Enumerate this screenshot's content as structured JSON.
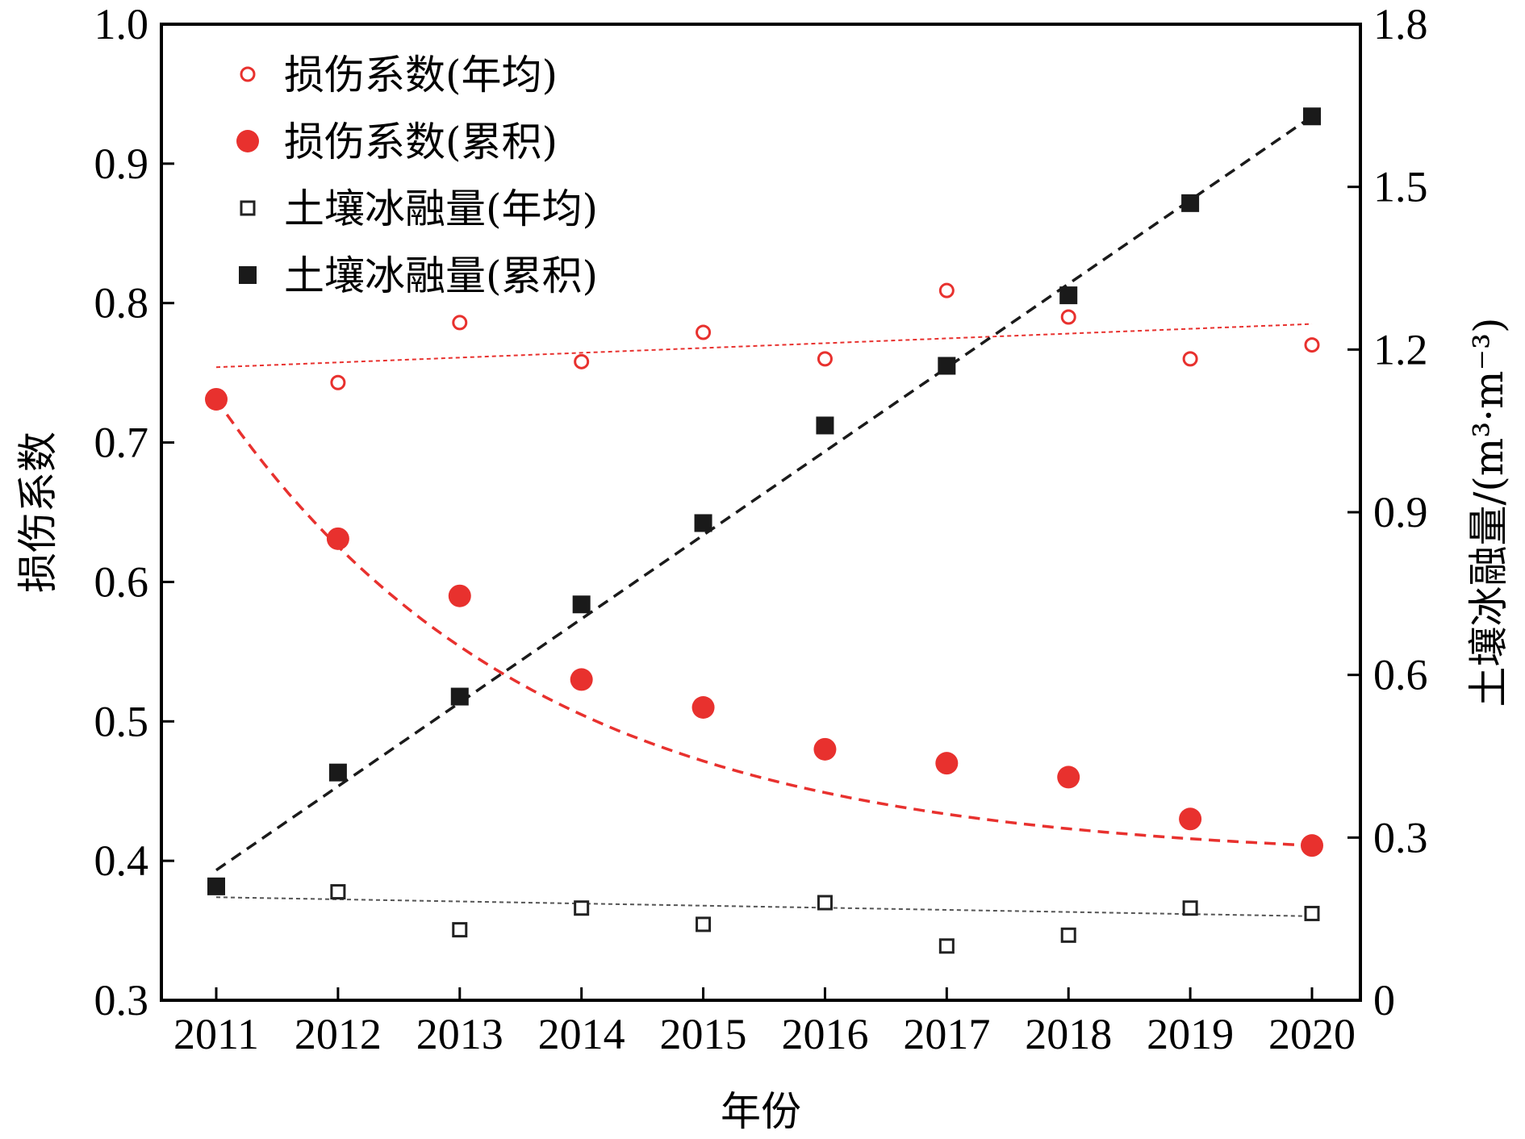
{
  "chart_data": {
    "type": "scatter",
    "title": "",
    "xlabel": "年份",
    "ylabel_left": "损伤系数",
    "ylabel_right": "土壤冰融量/(m³·m⁻³)",
    "x": [
      2011,
      2012,
      2013,
      2014,
      2015,
      2016,
      2017,
      2018,
      2019,
      2020
    ],
    "x_tick_labels": [
      "2011",
      "2012",
      "2013",
      "2014",
      "2015",
      "2016",
      "2017",
      "2018",
      "2019",
      "2020"
    ],
    "ylim_left": [
      0.3,
      1.0
    ],
    "ylim_right": [
      0,
      1.8
    ],
    "y_left_tick_labels": [
      "0.3",
      "0.4",
      "0.5",
      "0.6",
      "0.7",
      "0.8",
      "0.9",
      "1.0"
    ],
    "y_right_tick_labels": [
      "0",
      "0.3",
      "0.6",
      "0.9",
      "1.2",
      "1.5",
      "1.8"
    ],
    "legend_position": "top-left",
    "grid": false,
    "series": [
      {
        "name": "损伤系数(年均)",
        "axis": "left",
        "marker": "open-circle",
        "color": "#e8312e",
        "values": [
          0.73,
          0.743,
          0.786,
          0.758,
          0.779,
          0.76,
          0.809,
          0.79,
          0.76,
          0.77
        ],
        "trend": [
          0.754,
          0.785
        ]
      },
      {
        "name": "损伤系数(累积)",
        "axis": "left",
        "marker": "filled-circle",
        "color": "#e8312e",
        "values": [
          0.731,
          0.631,
          0.59,
          0.53,
          0.51,
          0.48,
          0.47,
          0.46,
          0.43,
          0.411
        ],
        "trend": "fitted-curve"
      },
      {
        "name": "土壤冰融量(年均)",
        "axis": "right",
        "marker": "open-square",
        "color": "#222222",
        "values": [
          0.21,
          0.2,
          0.13,
          0.17,
          0.14,
          0.18,
          0.1,
          0.12,
          0.17,
          0.16
        ],
        "trend": [
          0.19,
          0.155
        ]
      },
      {
        "name": "土壤冰融量(累积)",
        "axis": "right",
        "marker": "filled-square",
        "color": "#1a1a1a",
        "values": [
          0.21,
          0.42,
          0.56,
          0.73,
          0.88,
          1.06,
          1.17,
          1.3,
          1.47,
          1.63
        ],
        "trend": [
          0.24,
          1.63
        ]
      }
    ]
  }
}
